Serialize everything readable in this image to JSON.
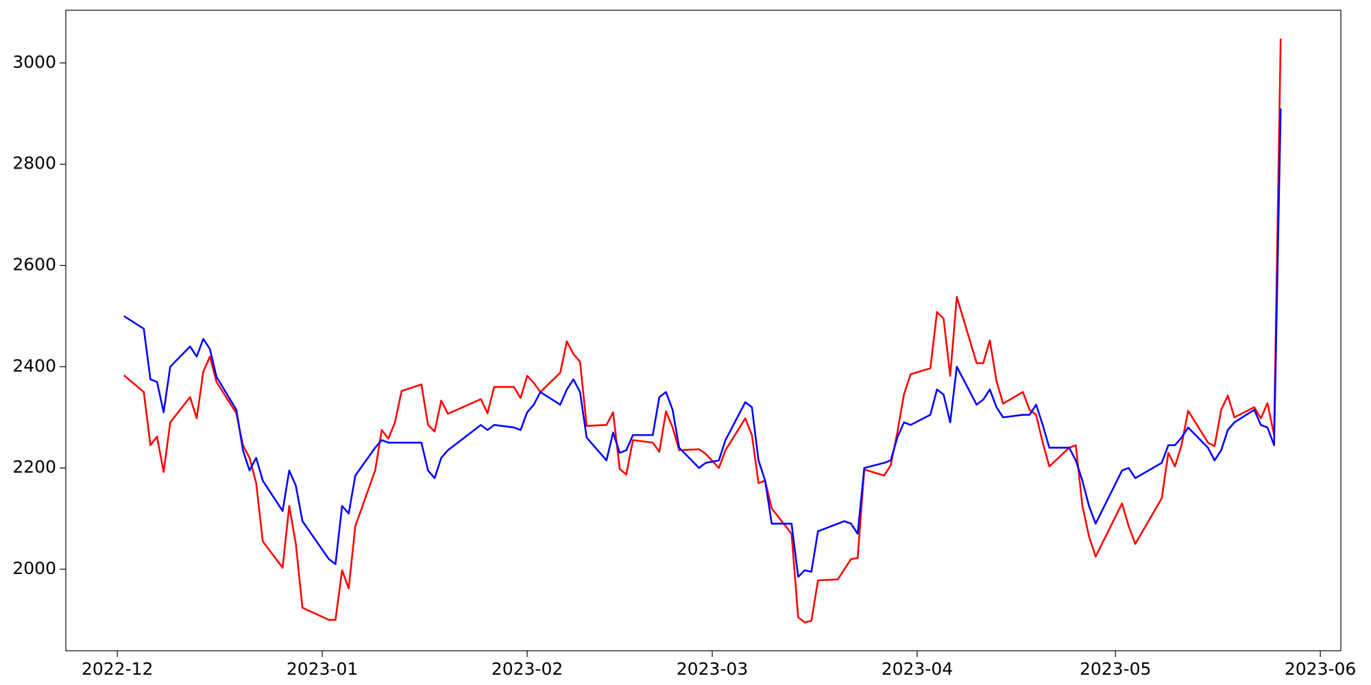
{
  "chart_data": {
    "type": "line",
    "x": [
      1,
      4,
      5,
      6,
      7,
      8,
      11,
      12,
      13,
      14,
      15,
      18,
      19,
      20,
      21,
      22,
      25,
      26,
      27,
      28,
      32,
      33,
      34,
      35,
      36,
      39,
      40,
      41,
      42,
      43,
      46,
      47,
      48,
      49,
      50,
      55,
      56,
      57,
      60,
      61,
      62,
      63,
      64,
      67,
      68,
      69,
      70,
      71,
      74,
      75,
      76,
      77,
      78,
      81,
      82,
      83,
      84,
      85,
      88,
      89,
      91,
      92,
      95,
      96,
      97,
      98,
      99,
      102,
      103,
      104,
      105,
      106,
      109,
      110,
      111,
      112,
      113,
      116,
      117,
      118,
      119,
      120,
      123,
      124,
      125,
      126,
      127,
      130,
      131,
      132,
      133,
      134,
      137,
      138,
      139,
      140,
      141,
      144,
      145,
      146,
      147,
      148,
      152,
      153,
      154,
      158,
      159,
      160,
      161,
      162,
      165,
      166,
      167,
      168,
      169,
      172,
      173,
      174,
      175,
      176
    ],
    "series": [
      {
        "color": "#ff0000",
        "values": [
          2383,
          2350,
          2245,
          2262,
          2192,
          2290,
          2340,
          2298,
          2390,
          2420,
          2370,
          2308,
          2245,
          2220,
          2170,
          2055,
          2003,
          2125,
          2050,
          1924,
          1900,
          1900,
          1998,
          1962,
          2085,
          2195,
          2275,
          2258,
          2290,
          2352,
          2365,
          2285,
          2272,
          2333,
          2307,
          2336,
          2308,
          2360,
          2360,
          2338,
          2382,
          2368,
          2350,
          2388,
          2450,
          2425,
          2410,
          2283,
          2285,
          2310,
          2198,
          2187,
          2255,
          2250,
          2232,
          2312,
          2280,
          2235,
          2237,
          2228,
          2200,
          2235,
          2298,
          2265,
          2170,
          2175,
          2120,
          2070,
          1905,
          1895,
          1898,
          1978,
          1980,
          2000,
          2020,
          2022,
          2197,
          2185,
          2205,
          2270,
          2345,
          2385,
          2397,
          2508,
          2495,
          2382,
          2538,
          2407,
          2407,
          2452,
          2372,
          2327,
          2350,
          2315,
          2305,
          2250,
          2203,
          2240,
          2245,
          2125,
          2065,
          2025,
          2130,
          2085,
          2050,
          2140,
          2230,
          2203,
          2245,
          2313,
          2250,
          2243,
          2315,
          2343,
          2300,
          2320,
          2298,
          2328,
          2265,
          3048
        ]
      },
      {
        "color": "#0000ff",
        "values": [
          2500,
          2475,
          2375,
          2370,
          2310,
          2400,
          2440,
          2420,
          2455,
          2435,
          2380,
          2315,
          2235,
          2195,
          2220,
          2175,
          2115,
          2195,
          2165,
          2095,
          2020,
          2010,
          2125,
          2110,
          2185,
          2240,
          2255,
          2250,
          2250,
          2250,
          2250,
          2195,
          2180,
          2220,
          2235,
          2285,
          2275,
          2285,
          2280,
          2275,
          2310,
          2325,
          2350,
          2325,
          2355,
          2375,
          2350,
          2260,
          2215,
          2270,
          2230,
          2235,
          2265,
          2265,
          2340,
          2350,
          2315,
          2240,
          2200,
          2210,
          2215,
          2255,
          2330,
          2320,
          2215,
          2175,
          2090,
          2090,
          1985,
          1998,
          1995,
          2075,
          2090,
          2095,
          2090,
          2070,
          2200,
          2210,
          2215,
          2260,
          2290,
          2285,
          2305,
          2355,
          2345,
          2290,
          2400,
          2325,
          2335,
          2355,
          2320,
          2300,
          2305,
          2305,
          2325,
          2285,
          2240,
          2240,
          2215,
          2175,
          2125,
          2090,
          2195,
          2200,
          2180,
          2210,
          2245,
          2245,
          2260,
          2280,
          2240,
          2215,
          2235,
          2275,
          2290,
          2315,
          2285,
          2280,
          2245,
          2910
        ]
      }
    ],
    "xlim": [
      -7.8,
      185.1
    ],
    "xticks": [
      {
        "value": 0,
        "label": "2022-12"
      },
      {
        "value": 31,
        "label": "2023-01"
      },
      {
        "value": 62,
        "label": "2023-02"
      },
      {
        "value": 90,
        "label": "2023-03"
      },
      {
        "value": 121,
        "label": "2023-04"
      },
      {
        "value": 151,
        "label": "2023-05"
      },
      {
        "value": 182,
        "label": "2023-06"
      }
    ],
    "ylim": [
      1839,
      3104
    ],
    "yticks": [
      2000,
      2200,
      2400,
      2600,
      2800,
      3000
    ],
    "grid": false
  }
}
